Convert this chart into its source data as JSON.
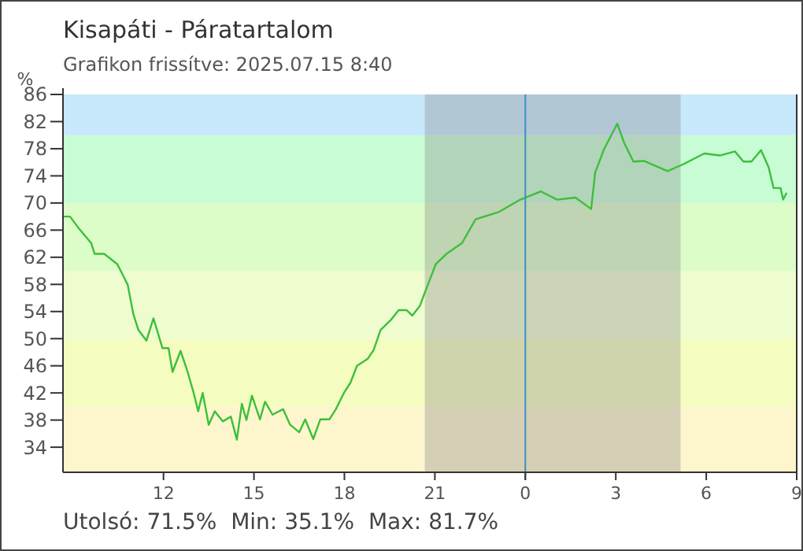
{
  "chart_data": {
    "type": "line",
    "title": "Kisapáti - Páratartalom",
    "subtitle": "Grafikon frissítve: 2025.07.15 8:40",
    "ylabel": "%",
    "annotations": [
      "Utolsó: 71.5%  Min: 35.1%  Max: 81.7%"
    ],
    "xlim": [
      "2025-07-14T08:40",
      "2025-07-15T09:00"
    ],
    "xticks": [
      {
        "value": "2025-07-14T12:00",
        "label": "12"
      },
      {
        "value": "2025-07-14T15:00",
        "label": "15"
      },
      {
        "value": "2025-07-14T18:00",
        "label": "18"
      },
      {
        "value": "2025-07-14T21:00",
        "label": "21"
      },
      {
        "value": "2025-07-15T00:00",
        "label": "0"
      },
      {
        "value": "2025-07-15T03:00",
        "label": "3"
      },
      {
        "value": "2025-07-15T06:00",
        "label": "6"
      },
      {
        "value": "2025-07-15T09:00",
        "label": "9"
      }
    ],
    "ylim": [
      30.3,
      86
    ],
    "yticks": [
      34,
      38,
      42,
      46,
      50,
      54,
      58,
      62,
      66,
      70,
      74,
      78,
      82,
      86
    ],
    "grid": false,
    "bands": [
      {
        "axis": "y",
        "from": 30.3,
        "to": 40,
        "color": "#fdf6cc"
      },
      {
        "axis": "y",
        "from": 40,
        "to": 50,
        "color": "#f4fcc0"
      },
      {
        "axis": "y",
        "from": 50,
        "to": 60,
        "color": "#eefcd0"
      },
      {
        "axis": "y",
        "from": 60,
        "to": 70,
        "color": "#dcfcc8"
      },
      {
        "axis": "y",
        "from": 70,
        "to": 80,
        "color": "#c8fcd4"
      },
      {
        "axis": "y",
        "from": 80,
        "to": 86,
        "color": "#c8e8fc"
      },
      {
        "axis": "x",
        "from": "2025-07-14T20:40",
        "to": "2025-07-15T05:09",
        "color": "#8a8a8a"
      }
    ],
    "ref_lines": [
      {
        "axis": "x",
        "value": "2025-07-15T00:00",
        "color": "#3b8fc8"
      }
    ],
    "series": [
      {
        "color": "#3cbf3c",
        "x": [
          "2025-07-14T08:40",
          "2025-07-14T08:54",
          "2025-07-14T09:10",
          "2025-07-14T09:36",
          "2025-07-14T09:43",
          "2025-07-14T10:02",
          "2025-07-14T10:28",
          "2025-07-14T10:39",
          "2025-07-14T10:49",
          "2025-07-14T11:00",
          "2025-07-14T11:10",
          "2025-07-14T11:26",
          "2025-07-14T11:40",
          "2025-07-14T11:47",
          "2025-07-14T11:58",
          "2025-07-14T12:10",
          "2025-07-14T12:18",
          "2025-07-14T12:34",
          "2025-07-14T12:48",
          "2025-07-14T13:00",
          "2025-07-14T13:09",
          "2025-07-14T13:18",
          "2025-07-14T13:30",
          "2025-07-14T13:42",
          "2025-07-14T13:58",
          "2025-07-14T14:14",
          "2025-07-14T14:26",
          "2025-07-14T14:36",
          "2025-07-14T14:45",
          "2025-07-14T14:56",
          "2025-07-14T15:12",
          "2025-07-14T15:22",
          "2025-07-14T15:37",
          "2025-07-14T15:58",
          "2025-07-14T16:12",
          "2025-07-14T16:30",
          "2025-07-14T16:42",
          "2025-07-14T16:58",
          "2025-07-14T17:12",
          "2025-07-14T17:30",
          "2025-07-14T17:43",
          "2025-07-14T17:59",
          "2025-07-14T18:12",
          "2025-07-14T18:25",
          "2025-07-14T18:46",
          "2025-07-14T18:58",
          "2025-07-14T19:12",
          "2025-07-14T19:33",
          "2025-07-14T19:48",
          "2025-07-14T20:04",
          "2025-07-14T20:15",
          "2025-07-14T20:30",
          "2025-07-14T20:39",
          "2025-07-14T21:02",
          "2025-07-14T21:23",
          "2025-07-14T21:54",
          "2025-07-14T22:21",
          "2025-07-14T23:08",
          "2025-07-14T23:50",
          "2025-07-15T00:31",
          "2025-07-15T01:03",
          "2025-07-15T01:40",
          "2025-07-15T02:11",
          "2025-07-15T02:19",
          "2025-07-15T02:37",
          "2025-07-15T03:03",
          "2025-07-15T03:17",
          "2025-07-15T03:35",
          "2025-07-15T03:56",
          "2025-07-15T04:43",
          "2025-07-15T05:14",
          "2025-07-15T05:56",
          "2025-07-15T06:27",
          "2025-07-15T06:57",
          "2025-07-15T07:14",
          "2025-07-15T07:30",
          "2025-07-15T07:49",
          "2025-07-15T08:04",
          "2025-07-15T08:14",
          "2025-07-15T08:28",
          "2025-07-15T08:33",
          "2025-07-15T08:40"
        ],
        "values": [
          68,
          68,
          66.4,
          64.1,
          62.5,
          62.5,
          61,
          59.4,
          57.9,
          53.6,
          51.3,
          49.7,
          53,
          51.3,
          48.6,
          48.6,
          45.1,
          48.2,
          45.1,
          42,
          39.3,
          42,
          37.3,
          39.3,
          37.8,
          38.5,
          35.1,
          40.4,
          38,
          41.6,
          38.1,
          40.7,
          38.8,
          39.6,
          37.3,
          36.2,
          38.1,
          35.2,
          38.1,
          38.1,
          39.6,
          42,
          43.5,
          46,
          47,
          48.3,
          51.3,
          52.8,
          54.2,
          54.2,
          53.4,
          54.8,
          56.6,
          61,
          62.5,
          64.1,
          67.6,
          68.7,
          70.5,
          71.7,
          70.5,
          70.8,
          69.1,
          74.5,
          78,
          81.7,
          78.8,
          76.1,
          76.2,
          74.7,
          75.7,
          77.3,
          77,
          77.6,
          76.1,
          76.1,
          77.8,
          75.3,
          72.2,
          72.2,
          70.5,
          71.5
        ]
      }
    ]
  }
}
